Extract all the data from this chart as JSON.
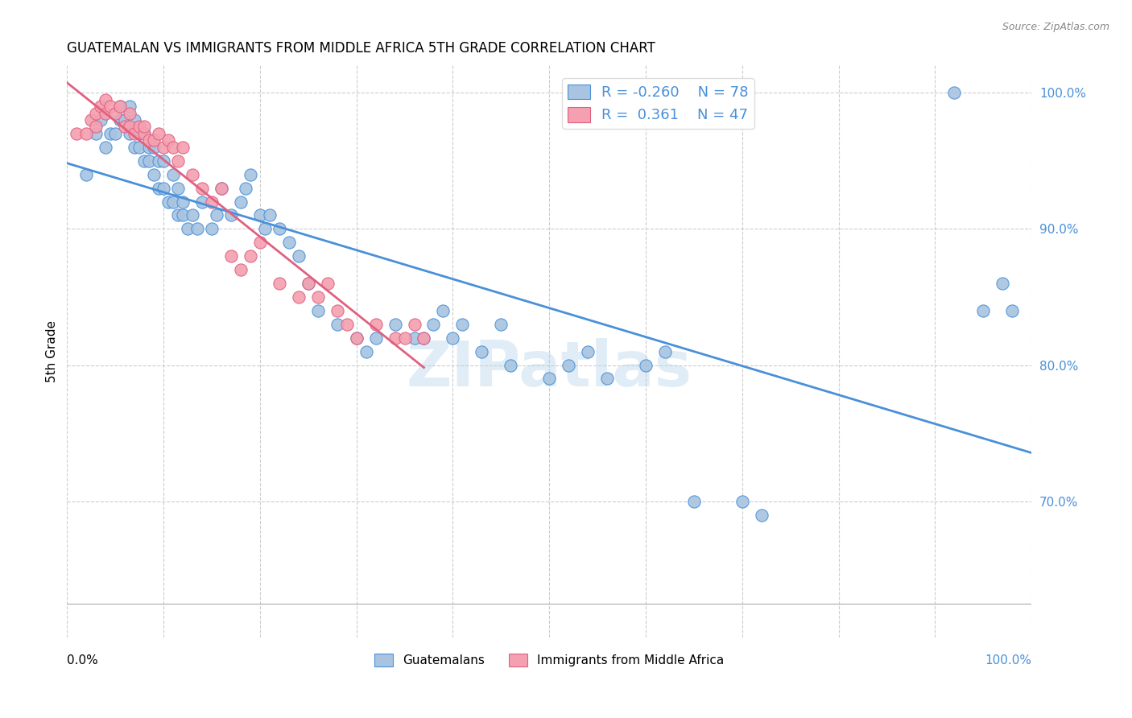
{
  "title": "GUATEMALAN VS IMMIGRANTS FROM MIDDLE AFRICA 5TH GRADE CORRELATION CHART",
  "source": "Source: ZipAtlas.com",
  "ylabel": "5th Grade",
  "right_ytick_vals": [
    1.0,
    0.9,
    0.8,
    0.7
  ],
  "legend_blue_r": "-0.260",
  "legend_blue_n": "78",
  "legend_pink_r": "0.361",
  "legend_pink_n": "47",
  "blue_color": "#a8c4e0",
  "pink_color": "#f4a0b0",
  "blue_line_color": "#4a90d9",
  "pink_line_color": "#e06080",
  "watermark": "ZIPatlas",
  "blue_scatter_x": [
    0.02,
    0.03,
    0.035,
    0.04,
    0.045,
    0.05,
    0.055,
    0.055,
    0.06,
    0.065,
    0.065,
    0.07,
    0.07,
    0.075,
    0.075,
    0.08,
    0.08,
    0.085,
    0.085,
    0.09,
    0.09,
    0.095,
    0.095,
    0.1,
    0.1,
    0.105,
    0.11,
    0.11,
    0.115,
    0.115,
    0.12,
    0.12,
    0.125,
    0.13,
    0.135,
    0.14,
    0.15,
    0.155,
    0.16,
    0.17,
    0.18,
    0.185,
    0.19,
    0.2,
    0.205,
    0.21,
    0.22,
    0.23,
    0.24,
    0.25,
    0.26,
    0.28,
    0.3,
    0.31,
    0.32,
    0.34,
    0.36,
    0.37,
    0.38,
    0.39,
    0.4,
    0.41,
    0.43,
    0.45,
    0.46,
    0.5,
    0.52,
    0.54,
    0.56,
    0.6,
    0.62,
    0.65,
    0.7,
    0.72,
    0.92,
    0.95,
    0.97,
    0.98
  ],
  "blue_scatter_y": [
    0.94,
    0.97,
    0.98,
    0.96,
    0.97,
    0.97,
    0.98,
    0.99,
    0.98,
    0.97,
    0.99,
    0.96,
    0.98,
    0.96,
    0.97,
    0.95,
    0.97,
    0.95,
    0.96,
    0.94,
    0.96,
    0.93,
    0.95,
    0.93,
    0.95,
    0.92,
    0.92,
    0.94,
    0.91,
    0.93,
    0.91,
    0.92,
    0.9,
    0.91,
    0.9,
    0.92,
    0.9,
    0.91,
    0.93,
    0.91,
    0.92,
    0.93,
    0.94,
    0.91,
    0.9,
    0.91,
    0.9,
    0.89,
    0.88,
    0.86,
    0.84,
    0.83,
    0.82,
    0.81,
    0.82,
    0.83,
    0.82,
    0.82,
    0.83,
    0.84,
    0.82,
    0.83,
    0.81,
    0.83,
    0.8,
    0.79,
    0.8,
    0.81,
    0.79,
    0.8,
    0.81,
    0.7,
    0.7,
    0.69,
    1.0,
    0.84,
    0.86,
    0.84
  ],
  "pink_scatter_x": [
    0.01,
    0.02,
    0.025,
    0.03,
    0.03,
    0.035,
    0.04,
    0.04,
    0.045,
    0.05,
    0.055,
    0.06,
    0.065,
    0.065,
    0.07,
    0.075,
    0.08,
    0.08,
    0.085,
    0.09,
    0.095,
    0.1,
    0.105,
    0.11,
    0.115,
    0.12,
    0.13,
    0.14,
    0.15,
    0.16,
    0.17,
    0.18,
    0.19,
    0.2,
    0.22,
    0.24,
    0.25,
    0.26,
    0.27,
    0.28,
    0.29,
    0.3,
    0.32,
    0.34,
    0.35,
    0.36,
    0.37
  ],
  "pink_scatter_y": [
    0.97,
    0.97,
    0.98,
    0.975,
    0.985,
    0.99,
    0.985,
    0.995,
    0.99,
    0.985,
    0.99,
    0.975,
    0.975,
    0.985,
    0.97,
    0.975,
    0.97,
    0.975,
    0.965,
    0.965,
    0.97,
    0.96,
    0.965,
    0.96,
    0.95,
    0.96,
    0.94,
    0.93,
    0.92,
    0.93,
    0.88,
    0.87,
    0.88,
    0.89,
    0.86,
    0.85,
    0.86,
    0.85,
    0.86,
    0.84,
    0.83,
    0.82,
    0.83,
    0.82,
    0.82,
    0.83,
    0.82
  ]
}
